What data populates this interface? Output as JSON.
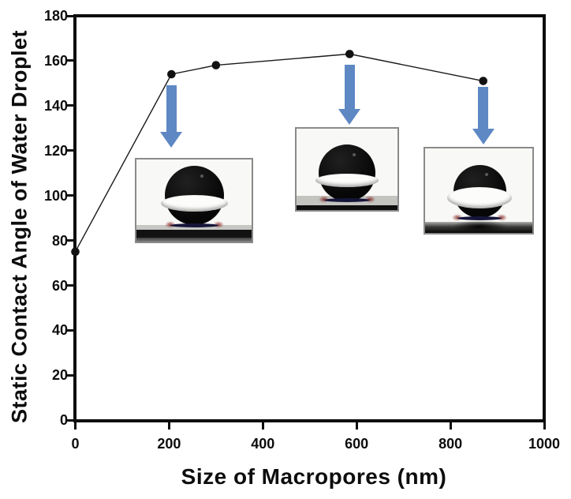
{
  "figure": {
    "background": "#ffffff",
    "frame_color": "#0d0d0d",
    "text_color": "#0d0d0d",
    "arrow_color": "#5e88c4"
  },
  "chart_data": {
    "type": "line",
    "title": "",
    "xlabel": "Size of Macropores (nm)",
    "ylabel": "Static Contact Angle of Water Droplet",
    "xlim": [
      0,
      1000
    ],
    "ylim": [
      0,
      180
    ],
    "xticks": [
      0,
      200,
      400,
      600,
      800,
      1000
    ],
    "yticks": [
      0,
      20,
      40,
      60,
      80,
      100,
      120,
      140,
      160,
      180
    ],
    "grid": false,
    "legend": "none",
    "marker": "filled-circle",
    "series": [
      {
        "name": "static-contact-angle",
        "color": "#111111",
        "points": [
          {
            "x": 0,
            "y": 75
          },
          {
            "x": 205,
            "y": 154
          },
          {
            "x": 300,
            "y": 158
          },
          {
            "x": 585,
            "y": 163
          },
          {
            "x": 870,
            "y": 151
          }
        ]
      }
    ],
    "annotations": {
      "arrows": [
        {
          "name": "down-arrow-to-photo-1",
          "from_point_x": 205
        },
        {
          "name": "down-arrow-to-photo-2",
          "from_point_x": 585
        },
        {
          "name": "down-arrow-to-photo-3",
          "from_point_x": 870
        }
      ],
      "insets": [
        {
          "name": "droplet-photo-1",
          "depicts": "near-spherical water droplet on rough surface"
        },
        {
          "name": "droplet-photo-2",
          "depicts": "near-spherical water droplet on rough powdery surface"
        },
        {
          "name": "droplet-photo-3",
          "depicts": "near-spherical water droplet on smooth dark surface"
        }
      ]
    }
  }
}
